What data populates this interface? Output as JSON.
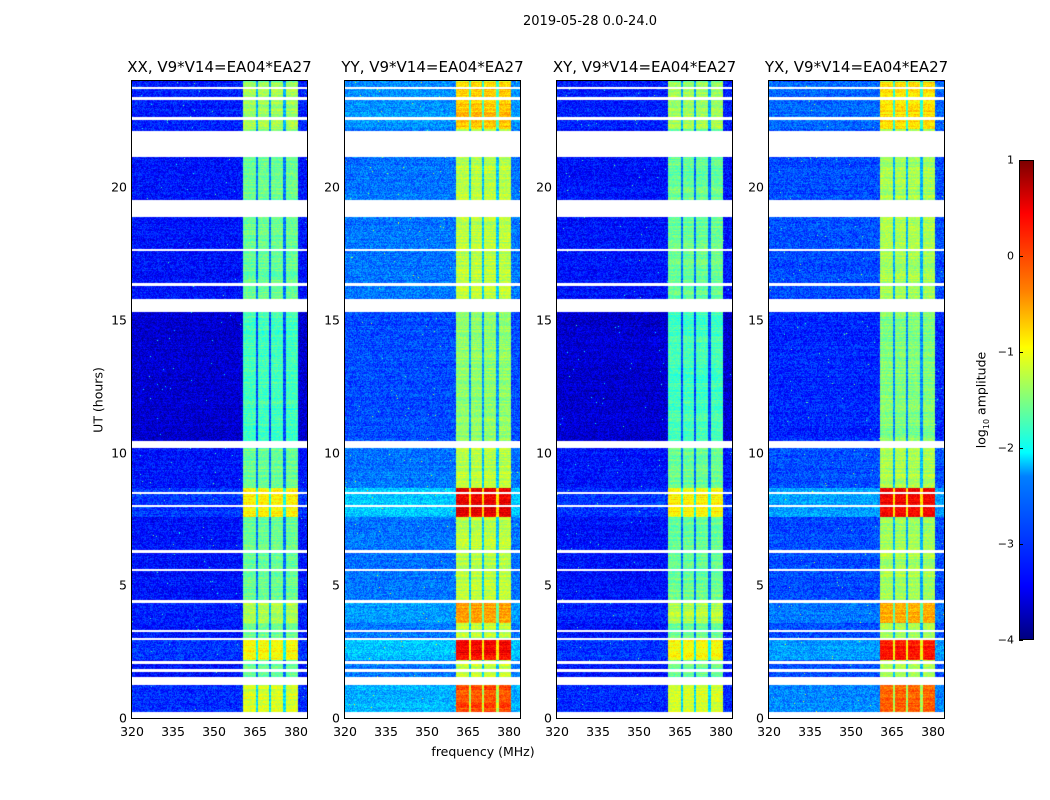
{
  "chart_data": {
    "type": "heatmap",
    "title": "2019-05-28 0.0-24.0",
    "xlabel": "frequency (MHz)",
    "ylabel": "UT (hours)",
    "xlim": [
      320,
      384
    ],
    "ylim": [
      0,
      24
    ],
    "xticks": [
      "320",
      "335",
      "350",
      "365",
      "380"
    ],
    "xtick_values": [
      320,
      335,
      350,
      365,
      380
    ],
    "yticks": [
      "0",
      "5",
      "10",
      "15",
      "20"
    ],
    "ytick_values": [
      0,
      5,
      10,
      15,
      20
    ],
    "colorbar": {
      "label_main": "log",
      "label_sub": "10",
      "label_tail": " amplitude",
      "range": [
        -4,
        1
      ],
      "ticks": [
        "1",
        "0",
        "−1",
        "−2",
        "−3",
        "−4"
      ],
      "tick_values": [
        1,
        0,
        -1,
        -2,
        -3,
        -4
      ],
      "colormap": "jet"
    },
    "panels": [
      {
        "title": "XX, V9*V14=EA04*EA27",
        "background_level": -3.3,
        "band_level": -1.6,
        "quiet_level": -3.6
      },
      {
        "title": "YY, V9*V14=EA04*EA27",
        "background_level": -2.8,
        "band_level": -1.2,
        "quiet_level": -3.0
      },
      {
        "title": "XY, V9*V14=EA04*EA27",
        "background_level": -3.3,
        "band_level": -1.6,
        "quiet_level": -3.6
      },
      {
        "title": "YX, V9*V14=EA04*EA27",
        "background_level": -3.0,
        "band_level": -1.3,
        "quiet_level": -3.2
      }
    ],
    "signal_band_mhz": [
      360.5,
      380.5
    ],
    "band_channel_gaps_mhz": [
      365.5,
      370.2,
      375.6
    ],
    "flagged_intervals_hours": [
      [
        0,
        0.25
      ],
      [
        1.25,
        1.55
      ],
      [
        1.75,
        1.85
      ],
      [
        2.05,
        2.15
      ],
      [
        2.95,
        3.05
      ],
      [
        3.25,
        3.35
      ],
      [
        4.35,
        4.45
      ],
      [
        5.55,
        5.65
      ],
      [
        6.25,
        6.35
      ],
      [
        7.95,
        8.05
      ],
      [
        8.45,
        8.55
      ],
      [
        10.2,
        10.45
      ],
      [
        15.3,
        15.8
      ],
      [
        16.3,
        16.4
      ],
      [
        17.6,
        17.7
      ],
      [
        18.9,
        19.55
      ],
      [
        21.15,
        22.15
      ],
      [
        22.55,
        22.65
      ],
      [
        23.3,
        23.4
      ],
      [
        23.7,
        23.8
      ]
    ],
    "bright_intervals_hours": [
      [
        0.25,
        1.25,
        1.2
      ],
      [
        2.2,
        3.0,
        1.6
      ],
      [
        3.6,
        4.4,
        0.8
      ],
      [
        7.6,
        8.7,
        1.7
      ],
      [
        22.2,
        24,
        0.6
      ]
    ],
    "quiet_interval_hours": [
      10.45,
      15.3
    ]
  }
}
